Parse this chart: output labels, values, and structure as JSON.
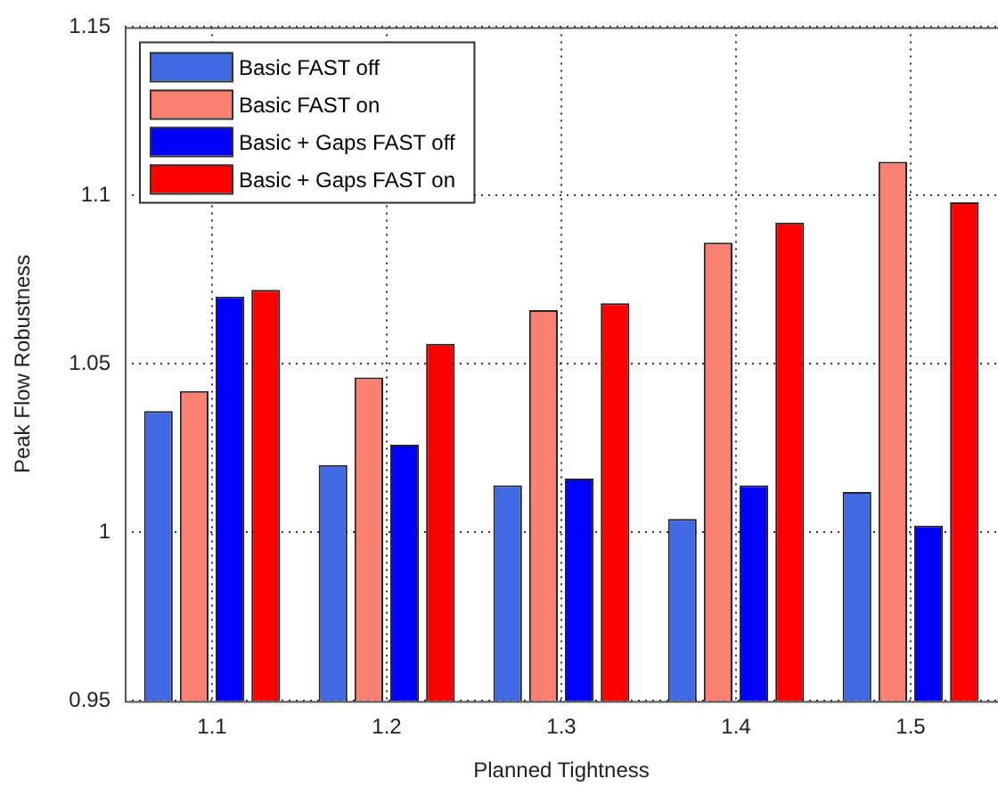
{
  "chart_data": {
    "type": "bar",
    "xlabel": "Planned Tightness",
    "ylabel": "Peak Flow Robustness",
    "categories": [
      "1.1",
      "1.2",
      "1.3",
      "1.4",
      "1.5"
    ],
    "series": [
      {
        "name": "Basic FAST off",
        "color": "#4169e1",
        "values": [
          1.036,
          1.02,
          1.014,
          1.004,
          1.012
        ]
      },
      {
        "name": "Basic FAST on",
        "color": "#fa8072",
        "values": [
          1.042,
          1.046,
          1.066,
          1.086,
          1.11
        ]
      },
      {
        "name": "Basic + Gaps FAST off",
        "color": "#0000ff",
        "values": [
          1.07,
          1.026,
          1.016,
          1.014,
          1.002
        ]
      },
      {
        "name": "Basic + Gaps FAST on",
        "color": "#ff0000",
        "values": [
          1.072,
          1.056,
          1.068,
          1.092,
          1.098
        ]
      }
    ],
    "ylim": [
      0.95,
      1.15
    ],
    "yticks": [
      0.95,
      1,
      1.05,
      1.1,
      1.15
    ],
    "grid": true,
    "legend": "top left"
  }
}
